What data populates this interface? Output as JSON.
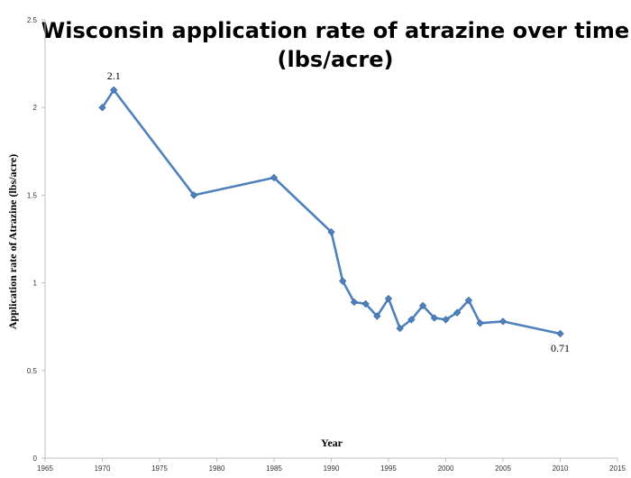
{
  "chart_data": {
    "type": "line",
    "title_line1": "Wisconsin application rate of atrazine over time",
    "title_line2": "(lbs/acre)",
    "xlabel": "Year",
    "ylabel": "Application rate of Atrazine (lbs/acre)",
    "xlim": [
      1965,
      2015
    ],
    "ylim": [
      0,
      2.5
    ],
    "x_ticks": [
      "1965",
      "1970",
      "1975",
      "1980",
      "1985",
      "1990",
      "1995",
      "2000",
      "2005",
      "2010",
      "2015"
    ],
    "y_ticks": [
      "0",
      "0.5",
      "1",
      "1.5",
      "2",
      "2.5"
    ],
    "grid": false,
    "legend": "none",
    "series": [
      {
        "color": "#4f81bd",
        "x": [
          1970,
          1971,
          1978,
          1985,
          1990,
          1991,
          1992,
          1993,
          1994,
          1995,
          1996,
          1997,
          1998,
          1999,
          2000,
          2001,
          2002,
          2003,
          2005,
          2010
        ],
        "y": [
          2.0,
          2.1,
          1.5,
          1.6,
          1.29,
          1.01,
          0.89,
          0.88,
          0.81,
          0.91,
          0.74,
          0.79,
          0.87,
          0.8,
          0.79,
          0.83,
          0.9,
          0.77,
          0.78,
          0.71
        ]
      }
    ],
    "annotations": [
      {
        "text": "2.1",
        "x": 1971,
        "y": 2.1,
        "position": "above"
      },
      {
        "text": "0.71",
        "x": 2010,
        "y": 0.71,
        "position": "below"
      }
    ]
  }
}
